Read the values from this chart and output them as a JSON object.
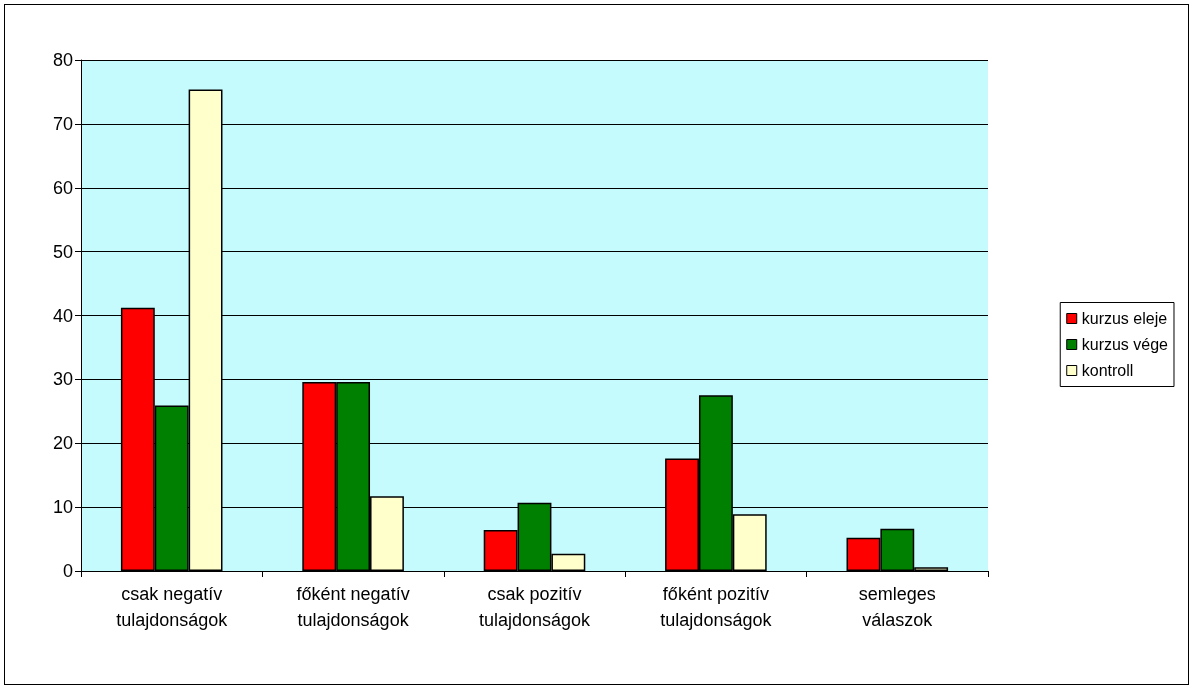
{
  "chart_data": {
    "type": "bar",
    "categories": [
      "csak negatív\ntulajdonságok",
      "főként negatív\ntulajdonságok",
      "csak pozitív\ntulajdonságok",
      "főként pozitív\ntulajdonságok",
      "semleges\nválaszok"
    ],
    "series": [
      {
        "name": "kurzus eleje",
        "color": "#ff0000",
        "values": [
          41.2,
          29.6,
          6.4,
          17.6,
          5.2
        ]
      },
      {
        "name": "kurzus vége",
        "color": "#008000",
        "values": [
          25.9,
          29.6,
          10.7,
          27.5,
          6.6
        ]
      },
      {
        "name": "kontroll",
        "color": "#ffffcc",
        "values": [
          75.4,
          11.7,
          2.7,
          8.9,
          0.6
        ]
      }
    ],
    "ylim": [
      0,
      80
    ],
    "yticks": [
      0,
      10,
      20,
      30,
      40,
      50,
      60,
      70,
      80
    ],
    "grid": "y",
    "legend": "right"
  }
}
